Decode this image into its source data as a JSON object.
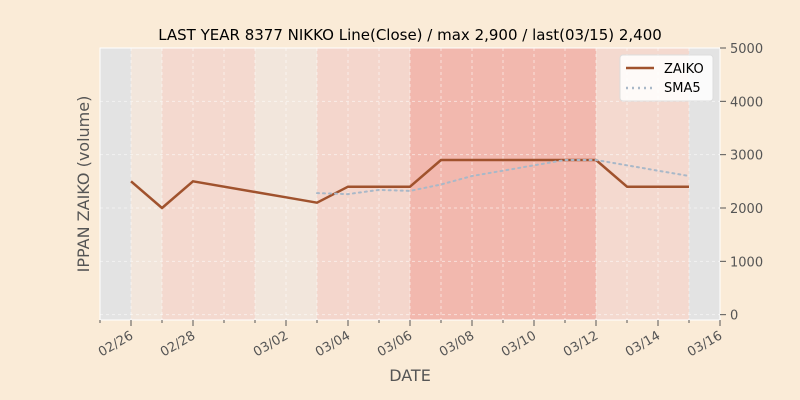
{
  "chart_data": {
    "type": "line",
    "title": "LAST YEAR 8377 NIKKO Line(Close) / max 2,900 / last(03/15) 2,400",
    "xlabel": "DATE",
    "ylabel": "IPPAN ZAIKO (volume)",
    "x": [
      "02/26",
      "02/27",
      "02/28",
      "03/01",
      "03/02",
      "03/03",
      "03/04",
      "03/05",
      "03/06",
      "03/07",
      "03/08",
      "03/09",
      "03/10",
      "03/11",
      "03/12",
      "03/13",
      "03/14",
      "03/15"
    ],
    "x_tick_labels": [
      "02/26",
      "02/28",
      "03/02",
      "03/04",
      "03/06",
      "03/08",
      "03/10",
      "03/12",
      "03/14",
      "03/16"
    ],
    "y_ticks": [
      "0",
      "1000",
      "2000",
      "3000",
      "4000",
      "5000"
    ],
    "ylim": [
      -100,
      5000
    ],
    "y_axis_side": "right",
    "grid": true,
    "legend_position": "top-right",
    "series": [
      {
        "name": "ZAIKO",
        "color": "#a0522d",
        "style": "solid",
        "values": [
          2500,
          2000,
          2500,
          2300,
          2200,
          2100,
          2400,
          2400,
          2400,
          2900,
          2900,
          2900,
          2900,
          2900,
          2900,
          2400,
          2400,
          2400
        ]
      },
      {
        "name": "SMA5",
        "color": "#a9b8c8",
        "style": "dotted",
        "values": [
          null,
          null,
          null,
          null,
          null,
          2280,
          2260,
          2340,
          2320,
          2440,
          2600,
          2700,
          2800,
          2900,
          2900,
          2800,
          2700,
          2600
        ]
      }
    ],
    "bands": [
      {
        "start": "02/25",
        "end": "02/26",
        "color": "#e3e3e3"
      },
      {
        "start": "02/26",
        "end": "02/27",
        "color": "#f2e6dc"
      },
      {
        "start": "02/27",
        "end": "03/01",
        "color": "#f4d9cf"
      },
      {
        "start": "03/01",
        "end": "03/03",
        "color": "#f2e6dc"
      },
      {
        "start": "03/03",
        "end": "03/06",
        "color": "#f4d6cc"
      },
      {
        "start": "03/06",
        "end": "03/12",
        "color": "#f2b8ae"
      },
      {
        "start": "03/12",
        "end": "03/15",
        "color": "#f4d9cf"
      },
      {
        "start": "03/15",
        "end": "03/16",
        "color": "#e3e3e3"
      }
    ]
  }
}
